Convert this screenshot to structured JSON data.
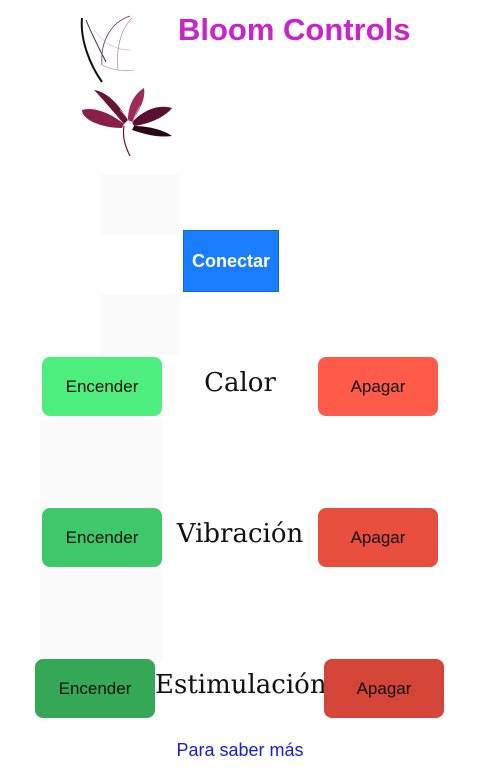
{
  "header": {
    "title": "Bloom Controls",
    "title_color": "#cc22cc",
    "logo_icon": "butterfly-flower-icon"
  },
  "connect": {
    "label": "Conectar",
    "color": "#1a7cff"
  },
  "controls": [
    {
      "name": "Calor",
      "on_label": "Encender",
      "off_label": "Apagar",
      "on_color": "#4ded7e",
      "off_color": "#ff5a4a"
    },
    {
      "name": "Vibración",
      "on_label": "Encender",
      "off_label": "Apagar",
      "on_color": "#3ec86a",
      "off_color": "#e84d3e"
    },
    {
      "name": "Estimulación",
      "on_label": "Encender",
      "off_label": "Apagar",
      "on_color": "#34a857",
      "off_color": "#d44437"
    }
  ],
  "footer": {
    "link_label": "Para saber más",
    "link_color": "#1a1add"
  }
}
